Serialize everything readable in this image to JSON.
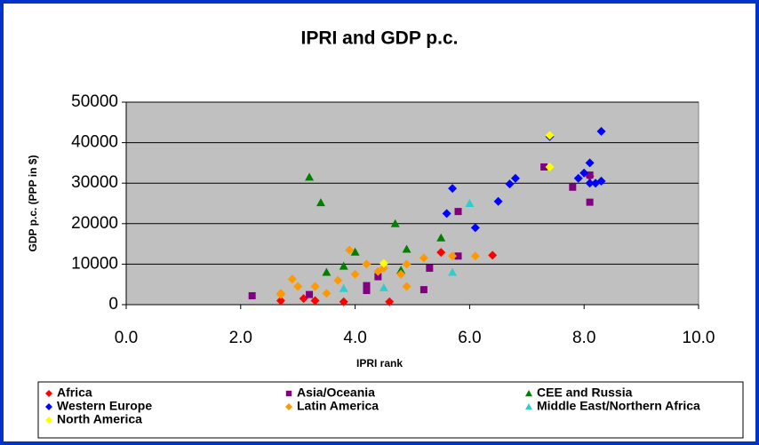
{
  "chart_data": {
    "type": "scatter",
    "title": "IPRI and GDP p.c.",
    "x_label": "IPRI rank",
    "y_label": "GDP p.c. (PPP in $)",
    "xlim": [
      0,
      10
    ],
    "xticks": [
      {
        "value": 0,
        "label": "0.0"
      },
      {
        "value": 2,
        "label": "2.0"
      },
      {
        "value": 4,
        "label": "4.0"
      },
      {
        "value": 6,
        "label": "6.0"
      },
      {
        "value": 8,
        "label": "8.0"
      },
      {
        "value": 10,
        "label": "10.0"
      }
    ],
    "ylim": [
      0,
      50000
    ],
    "yticks": [
      0,
      10000,
      20000,
      30000,
      40000,
      50000
    ],
    "grid": true,
    "series": [
      {
        "name": "Africa",
        "color": "#ff0000",
        "marker": "diamond",
        "x": [
          2.7,
          3.1,
          3.3,
          3.8,
          4.6,
          5.5,
          6.4,
          8.1
        ],
        "values": [
          1000,
          1500,
          1000,
          700,
          700,
          12900,
          12200,
          31700
        ]
      },
      {
        "name": "Asia/Oceania",
        "color": "#800080",
        "marker": "square",
        "x": [
          2.2,
          3.2,
          4.2,
          4.2,
          4.4,
          5.2,
          5.3,
          5.8,
          5.8,
          7.3,
          7.8,
          8.1,
          8.1
        ],
        "values": [
          2200,
          2500,
          3500,
          4700,
          6900,
          3700,
          9000,
          12000,
          23000,
          34000,
          29000,
          25300,
          32000
        ]
      },
      {
        "name": "CEE and Russia",
        "color": "#008000",
        "marker": "triangle",
        "x": [
          3.2,
          3.4,
          3.5,
          3.8,
          4.0,
          4.7,
          4.8,
          4.9,
          5.5
        ],
        "values": [
          31500,
          25200,
          8000,
          9500,
          13000,
          20000,
          8500,
          13700,
          16500
        ]
      },
      {
        "name": "Western Europe",
        "color": "#0000ff",
        "marker": "diamond",
        "x": [
          5.6,
          5.7,
          6.1,
          6.5,
          6.7,
          6.8,
          7.4,
          7.9,
          8.0,
          8.1,
          8.1,
          8.2,
          8.3,
          8.3
        ],
        "values": [
          22500,
          28700,
          19000,
          25500,
          29800,
          31200,
          41500,
          31200,
          32500,
          30000,
          35000,
          30000,
          30500,
          42800
        ]
      },
      {
        "name": "Latin America",
        "color": "#ff9900",
        "marker": "diamond",
        "x": [
          2.7,
          2.7,
          2.9,
          3.0,
          3.3,
          3.5,
          3.7,
          3.9,
          4.0,
          4.2,
          4.4,
          4.5,
          4.8,
          4.9,
          4.9,
          5.2,
          5.7,
          6.1
        ],
        "values": [
          2800,
          2500,
          6300,
          4500,
          4500,
          2800,
          6000,
          13500,
          7500,
          10000,
          8200,
          9000,
          7500,
          4500,
          10000,
          11500,
          12000,
          12000
        ]
      },
      {
        "name": "Middle East/Northern Africa",
        "color": "#33cccc",
        "marker": "triangle",
        "x": [
          3.8,
          4.5,
          5.7,
          6.0
        ],
        "values": [
          4000,
          4200,
          8000,
          25000
        ]
      },
      {
        "name": "North America",
        "color": "#ffff00",
        "marker": "diamond",
        "x": [
          4.5,
          7.4,
          7.4
        ],
        "values": [
          10200,
          34000,
          41800
        ]
      }
    ]
  }
}
